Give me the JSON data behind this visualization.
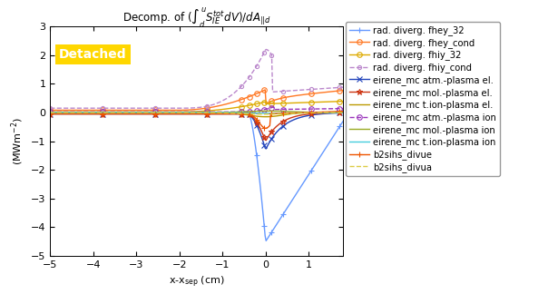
{
  "title": "Decomp. of ($\\int_d^{u}S_{IE}^{tot}dV$)/$dA_{||d}$",
  "xlabel": "x-x$_{sep}$ (cm)",
  "ylabel": "(MWm$^{-2}$)",
  "xlim": [
    -5,
    1.8
  ],
  "ylim": [
    -5,
    3
  ],
  "xticks": [
    -5,
    -4,
    -3,
    -2,
    -1,
    0,
    1
  ],
  "yticks": [
    -5,
    -4,
    -3,
    -2,
    -1,
    0,
    1,
    2,
    3
  ],
  "detached_label": "Detached",
  "detached_color": "#FFD700",
  "detached_text_color": "white",
  "series": [
    {
      "label": "rad. diverg. fhey_32",
      "color": "#6699FF",
      "linestyle": "-",
      "marker": "+",
      "markersize": 4,
      "linewidth": 1.0,
      "key": "fhey_32"
    },
    {
      "label": "rad. diverg. fhey_cond",
      "color": "#FF7722",
      "linestyle": "-",
      "marker": "o",
      "markerfacecolor": "none",
      "markersize": 4,
      "linewidth": 1.0,
      "key": "fhey_cond"
    },
    {
      "label": "rad. diverg. fhiy_32",
      "color": "#DDAA00",
      "linestyle": "-",
      "marker": "o",
      "markerfacecolor": "none",
      "markersize": 4,
      "linewidth": 1.0,
      "key": "fhiy_32"
    },
    {
      "label": "rad. diverg. fhiy_cond",
      "color": "#BB88CC",
      "linestyle": "--",
      "marker": "o",
      "markerfacecolor": "none",
      "markersize": 3,
      "linewidth": 1.0,
      "key": "fhiy_cond"
    },
    {
      "label": "eirene_mc atm.-plasma el.",
      "color": "#2244BB",
      "linestyle": "-",
      "marker": "x",
      "markersize": 5,
      "linewidth": 1.0,
      "key": "atm_el"
    },
    {
      "label": "eirene_mc mol.-plasma el.",
      "color": "#CC3311",
      "linestyle": "-",
      "marker": "*",
      "markerfacecolor": "none",
      "markersize": 5,
      "linewidth": 1.0,
      "key": "mol_el"
    },
    {
      "label": "eirene_mc t.ion-plasma el.",
      "color": "#BB9900",
      "linestyle": "-",
      "marker": null,
      "markersize": 3,
      "linewidth": 1.0,
      "key": "tion_el"
    },
    {
      "label": "eirene_mc atm.-plasma ion",
      "color": "#9933BB",
      "linestyle": "--",
      "marker": "o",
      "markerfacecolor": "none",
      "markersize": 4,
      "linewidth": 1.0,
      "key": "atm_ion"
    },
    {
      "label": "eirene_mc mol.-plasma ion",
      "color": "#99AA22",
      "linestyle": "-",
      "marker": null,
      "markersize": 3,
      "linewidth": 1.0,
      "key": "mol_ion"
    },
    {
      "label": "eirene_mc t.ion-plasma ion",
      "color": "#44CCDD",
      "linestyle": "-",
      "marker": null,
      "markersize": 3,
      "linewidth": 1.0,
      "key": "tion_ion"
    },
    {
      "label": "b2sihs_divue",
      "color": "#EE5500",
      "linestyle": "-",
      "marker": "+",
      "markersize": 4,
      "linewidth": 1.0,
      "key": "divue"
    },
    {
      "label": "b2sihs_divua",
      "color": "#DDCC44",
      "linestyle": "--",
      "marker": null,
      "markersize": 3,
      "linewidth": 1.0,
      "key": "divua"
    }
  ]
}
